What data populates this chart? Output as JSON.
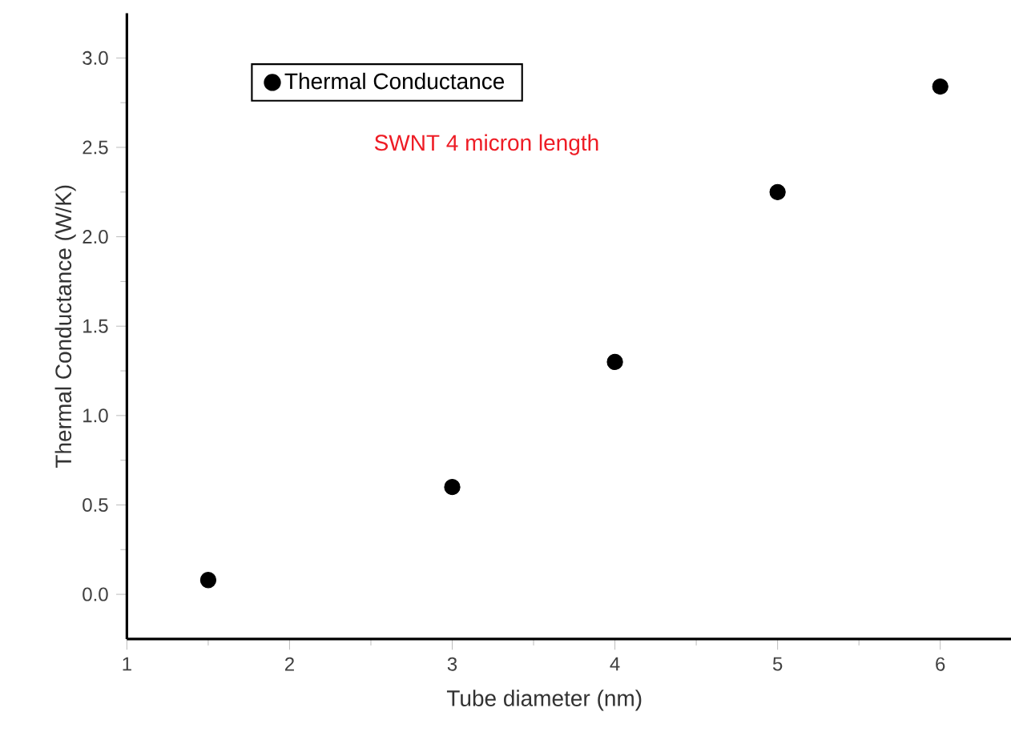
{
  "chart_data": {
    "type": "scatter",
    "xlabel": "Tube diameter (nm)",
    "ylabel": "Thermal Conductance (W/K)",
    "x": [
      1.5,
      3,
      4,
      5,
      6
    ],
    "series": [
      {
        "name": "Thermal Conductance",
        "color": "#000000",
        "values": [
          0.08,
          0.6,
          1.3,
          2.25,
          2.84
        ]
      }
    ],
    "xlim": [
      1,
      6.45
    ],
    "xticks": [
      1,
      2,
      3,
      4,
      5,
      6
    ],
    "ylim": [
      -0.25,
      3.25
    ],
    "yticks": [
      {
        "value": 0,
        "label": "0.0"
      },
      {
        "value": 0.5,
        "label": "0.5"
      },
      {
        "value": 1,
        "label": "1.0"
      },
      {
        "value": 1.5,
        "label": "1.5"
      },
      {
        "value": 2,
        "label": "2.0"
      },
      {
        "value": 2.5,
        "label": "2.5"
      },
      {
        "value": 3,
        "label": "3.0"
      }
    ],
    "annotations": [
      "SWNT 4 micron length"
    ],
    "legend": "top left",
    "marker": "circle",
    "grid": false
  }
}
